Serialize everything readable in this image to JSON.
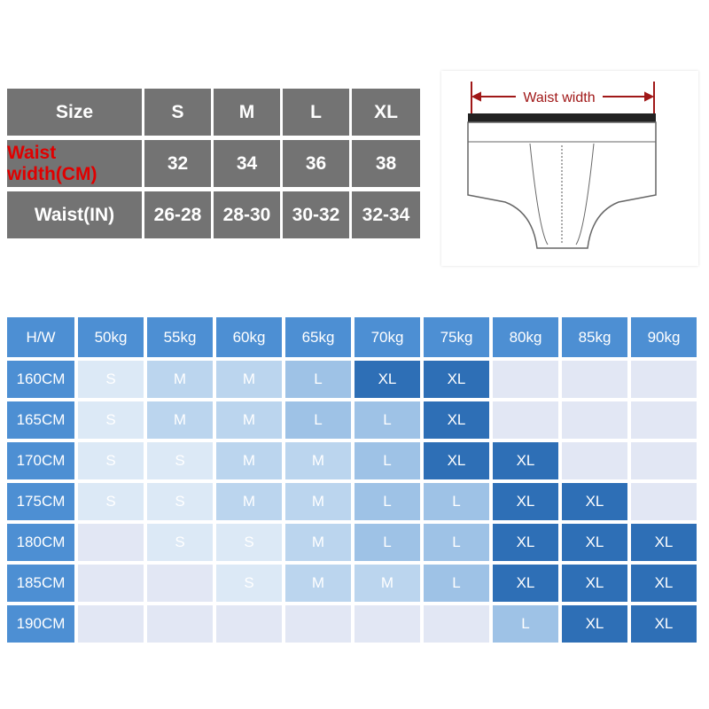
{
  "size_table": {
    "header": [
      "Size",
      "S",
      "M",
      "L",
      "XL"
    ],
    "rows": [
      {
        "label": "Waist width(CM)",
        "values": [
          "32",
          "34",
          "36",
          "38"
        ]
      },
      {
        "label": "Waist(IN)",
        "values": [
          "26-28",
          "28-30",
          "30-32",
          "32-34"
        ]
      }
    ]
  },
  "illustration": {
    "label": "Waist width"
  },
  "colors": {
    "grey": "#737373",
    "red": "#e00000",
    "header_blue": "#4d8fd3",
    "S": "#dce9f6",
    "M": "#bbd5ee",
    "L": "#9ec2e6",
    "XL": "#2e6fb6",
    "empty": "#e2e7f4"
  },
  "recommend": {
    "corner": "H/W",
    "weights": [
      "50kg",
      "55kg",
      "60kg",
      "65kg",
      "70kg",
      "75kg",
      "80kg",
      "85kg",
      "90kg"
    ],
    "rows": [
      {
        "height": "160CM",
        "sizes": [
          "S",
          "M",
          "M",
          "L",
          "XL",
          "XL",
          "",
          "",
          ""
        ]
      },
      {
        "height": "165CM",
        "sizes": [
          "S",
          "M",
          "M",
          "L",
          "L",
          "XL",
          "",
          "",
          ""
        ]
      },
      {
        "height": "170CM",
        "sizes": [
          "S",
          "S",
          "M",
          "M",
          "L",
          "XL",
          "XL",
          "",
          ""
        ]
      },
      {
        "height": "175CM",
        "sizes": [
          "S",
          "S",
          "M",
          "M",
          "L",
          "L",
          "XL",
          "XL",
          ""
        ]
      },
      {
        "height": "180CM",
        "sizes": [
          "",
          "S",
          "S",
          "M",
          "L",
          "L",
          "XL",
          "XL",
          "XL"
        ]
      },
      {
        "height": "185CM",
        "sizes": [
          "",
          "",
          "S",
          "M",
          "M",
          "L",
          "XL",
          "XL",
          "XL"
        ]
      },
      {
        "height": "190CM",
        "sizes": [
          "",
          "",
          "",
          "",
          "",
          "",
          "L",
          "XL",
          "XL"
        ]
      }
    ]
  }
}
